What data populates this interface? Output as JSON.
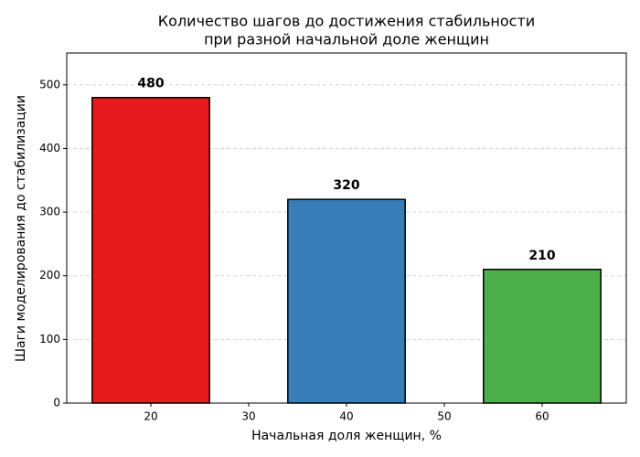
{
  "chart_data": {
    "type": "bar",
    "title": [
      "Количество шагов до достижения стабильности",
      "при разной начальной доле женщин"
    ],
    "xlabel": "Начальная доля женщин, %",
    "ylabel": "Шаги моделирования до стабилизации",
    "x": [
      20,
      40,
      60
    ],
    "values": [
      480,
      320,
      210
    ],
    "colors": [
      "#e41a1c",
      "#377eb8",
      "#4daf4a"
    ],
    "edgecolor": "#000000",
    "xlim": [
      11.4,
      68.6
    ],
    "xticks": [
      20,
      30,
      40,
      50,
      60
    ],
    "ylim": [
      0,
      550
    ],
    "yticks": [
      0,
      100,
      200,
      300,
      400,
      500
    ],
    "grid": true
  }
}
